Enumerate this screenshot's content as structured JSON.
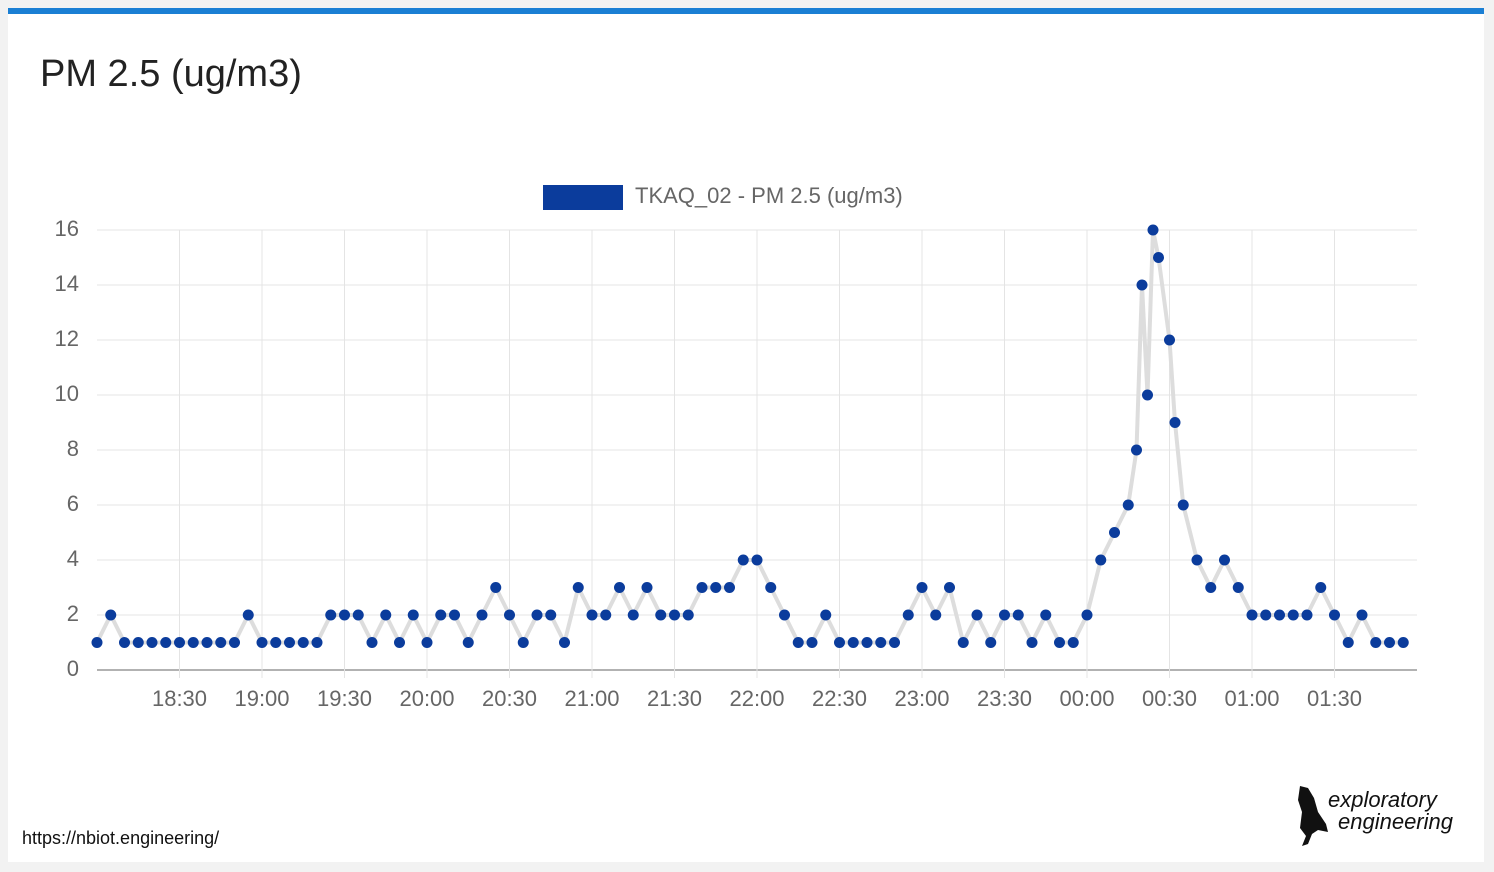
{
  "chart_data": {
    "type": "line",
    "title": "PM 2.5 (ug/m3)",
    "series": [
      {
        "name": "TKAQ_02 - PM 2.5 (ug/m3)",
        "color": "#0b3c9c",
        "x": [
          "18:00",
          "18:05",
          "18:10",
          "18:15",
          "18:20",
          "18:25",
          "18:30",
          "18:35",
          "18:40",
          "18:45",
          "18:50",
          "18:55",
          "19:00",
          "19:05",
          "19:10",
          "19:15",
          "19:20",
          "19:25",
          "19:30",
          "19:35",
          "19:40",
          "19:45",
          "19:50",
          "19:55",
          "20:00",
          "20:05",
          "20:10",
          "20:15",
          "20:20",
          "20:25",
          "20:30",
          "20:35",
          "20:40",
          "20:45",
          "20:50",
          "20:55",
          "21:00",
          "21:05",
          "21:10",
          "21:15",
          "21:20",
          "21:25",
          "21:30",
          "21:35",
          "21:40",
          "21:45",
          "21:50",
          "21:55",
          "22:00",
          "22:05",
          "22:10",
          "22:15",
          "22:20",
          "22:25",
          "22:30",
          "22:35",
          "22:40",
          "22:45",
          "22:50",
          "22:55",
          "23:00",
          "23:05",
          "23:10",
          "23:15",
          "23:20",
          "23:25",
          "23:30",
          "23:35",
          "23:40",
          "23:45",
          "23:50",
          "23:55",
          "00:00",
          "00:05",
          "00:10",
          "00:15",
          "00:18",
          "00:20",
          "00:22",
          "00:24",
          "00:26",
          "00:30",
          "00:32",
          "00:35",
          "00:40",
          "00:45",
          "00:50",
          "00:55",
          "01:00",
          "01:05",
          "01:10",
          "01:15",
          "01:20",
          "01:25",
          "01:30",
          "01:35",
          "01:40",
          "01:45",
          "01:50",
          "01:55"
        ],
        "values": [
          1,
          2,
          1,
          1,
          1,
          1,
          1,
          1,
          1,
          1,
          1,
          2,
          1,
          1,
          1,
          1,
          1,
          2,
          2,
          2,
          1,
          2,
          1,
          2,
          1,
          2,
          2,
          1,
          2,
          3,
          2,
          1,
          2,
          2,
          1,
          3,
          2,
          2,
          3,
          2,
          3,
          2,
          2,
          2,
          3,
          3,
          3,
          4,
          4,
          3,
          2,
          1,
          1,
          2,
          1,
          1,
          1,
          1,
          1,
          2,
          3,
          2,
          3,
          1,
          2,
          1,
          2,
          2,
          1,
          2,
          1,
          1,
          2,
          4,
          5,
          6,
          8,
          14,
          10,
          16,
          15,
          12,
          9,
          6,
          4,
          3,
          4,
          3,
          2,
          2,
          2,
          2,
          2,
          3,
          2,
          1,
          2,
          1,
          1,
          1
        ]
      }
    ],
    "xlim": [
      "18:00",
      "02:00"
    ],
    "xticks": [
      "18:30",
      "19:00",
      "19:30",
      "20:00",
      "20:30",
      "21:00",
      "21:30",
      "22:00",
      "22:30",
      "23:00",
      "23:30",
      "00:00",
      "00:30",
      "01:00",
      "01:30"
    ],
    "ylim": [
      0,
      16
    ],
    "yticks": [
      0,
      2,
      4,
      6,
      8,
      10,
      12,
      14,
      16
    ],
    "grid": true,
    "legend": "top"
  },
  "footer": {
    "url": "https://nbiot.engineering/",
    "logo": [
      "exploratory",
      "engineering"
    ]
  }
}
